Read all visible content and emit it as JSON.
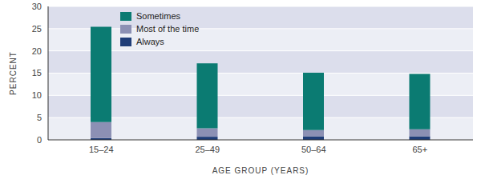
{
  "chart_data": {
    "type": "bar",
    "stacked": true,
    "x_label": "AGE GROUP (YEARS)",
    "y_label": "PERCENT",
    "categories": [
      "15–24",
      "25–49",
      "50–64",
      "65+"
    ],
    "series": [
      {
        "name": "Always",
        "color": "#1f3d78",
        "values": [
          0.4,
          0.7,
          0.8,
          0.8
        ]
      },
      {
        "name": "Most of the time",
        "color": "#8c90b4",
        "values": [
          3.6,
          1.9,
          1.4,
          1.6
        ]
      },
      {
        "name": "Sometimes",
        "color": "#0b7b72",
        "values": [
          21.4,
          14.6,
          12.9,
          12.4
        ]
      }
    ],
    "ylim": [
      0,
      30
    ],
    "yticks": [
      0,
      5,
      10,
      15,
      20,
      25,
      30
    ],
    "grid": true,
    "legend": "upper left"
  }
}
